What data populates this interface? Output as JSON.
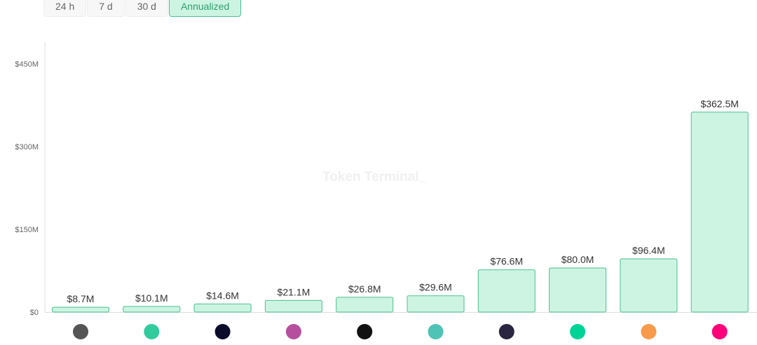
{
  "tabs": [
    {
      "label": "24 h",
      "active": false
    },
    {
      "label": "7 d",
      "active": false
    },
    {
      "label": "30 d",
      "active": false
    },
    {
      "label": "Annualized",
      "active": true
    }
  ],
  "watermark": "Token Terminal_",
  "colors": {
    "bar_fill": "#cdf4e2",
    "bar_stroke": "#4cbf8f",
    "active_tab_text": "#2f9e6e"
  },
  "chart_data": {
    "type": "bar",
    "categories": [
      "0x-icon",
      "kyber-icon",
      "synthetix-icon",
      "aave-icon",
      "balancer-icon",
      "maker-icon",
      "dark-swirl-icon",
      "compound-icon",
      "sushiswap-icon",
      "uniswap-icon"
    ],
    "values": [
      8.7,
      10.1,
      14.6,
      21.1,
      26.8,
      29.6,
      76.6,
      80.0,
      96.4,
      362.5
    ],
    "data_labels": [
      "$8.7M",
      "$10.1M",
      "$14.6M",
      "$21.1M",
      "$26.8M",
      "$29.6M",
      "$76.6M",
      "$80.0M",
      "$96.4M",
      "$362.5M"
    ],
    "yticks": [
      0,
      150,
      300,
      450
    ],
    "ytick_labels": [
      "$0",
      "$150M",
      "$300M",
      "$450M"
    ],
    "ylim": [
      0,
      450
    ],
    "grid": false,
    "icon_colors": [
      "#555555",
      "#31cb9e",
      "#0b0c2a",
      "#b6509e",
      "#111111",
      "#4fc3b5",
      "#2a2540",
      "#00d395",
      "#f89a4b",
      "#ff007a"
    ]
  }
}
